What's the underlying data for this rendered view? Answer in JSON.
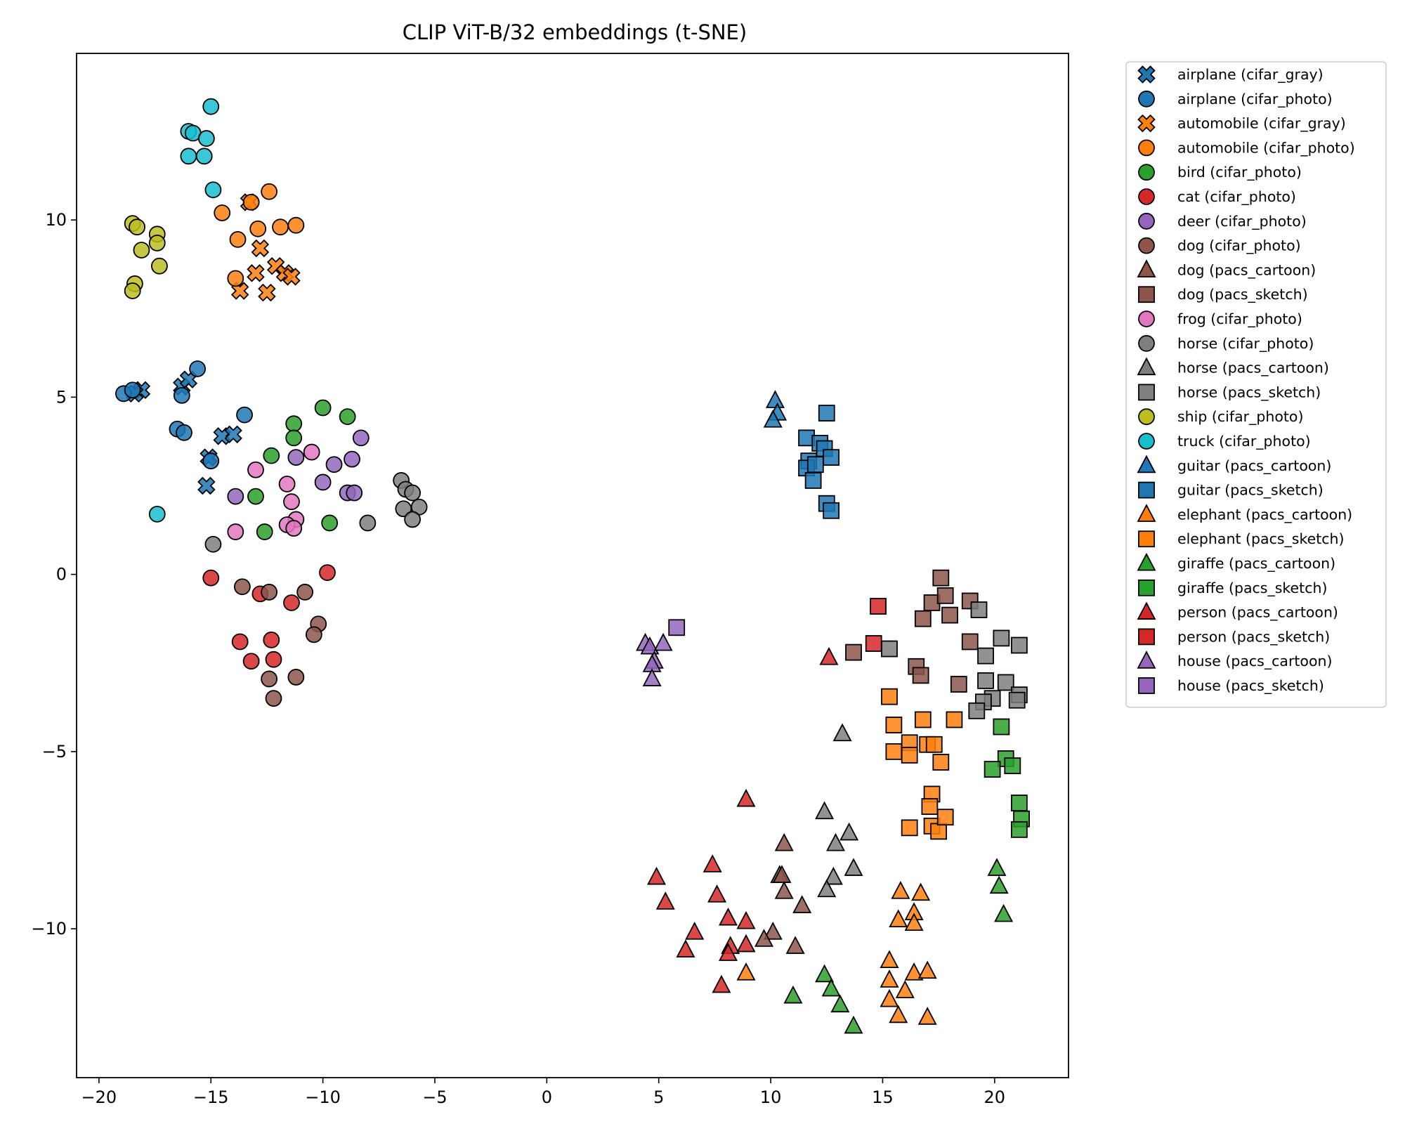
{
  "chart_data": {
    "type": "scatter",
    "title": "CLIP ViT-B/32 embeddings (t-SNE)",
    "xlabel": "",
    "ylabel": "",
    "xlim": [
      -21,
      23.3
    ],
    "ylim": [
      -14.2,
      14.7
    ],
    "xticks": [
      -20,
      -15,
      -10,
      -5,
      0,
      5,
      10,
      15,
      20
    ],
    "yticks": [
      -10,
      -5,
      0,
      5,
      10
    ],
    "grid": false,
    "legend_position": "outside-right",
    "series": [
      {
        "name": "airplane (cifar_gray)",
        "color": "#1f77b4",
        "marker": "x",
        "points": [
          [
            -18.1,
            5.2
          ],
          [
            -18.4,
            5.1
          ],
          [
            -16.3,
            5.3
          ],
          [
            -16.0,
            5.5
          ],
          [
            -14.5,
            3.9
          ],
          [
            -14.0,
            3.95
          ],
          [
            -15.1,
            3.3
          ],
          [
            -15.2,
            2.5
          ]
        ]
      },
      {
        "name": "airplane (cifar_photo)",
        "color": "#1f77b4",
        "marker": "o",
        "points": [
          [
            -18.9,
            5.1
          ],
          [
            -18.5,
            5.2
          ],
          [
            -15.6,
            5.8
          ],
          [
            -16.3,
            5.05
          ],
          [
            -16.5,
            4.1
          ],
          [
            -16.2,
            4.0
          ],
          [
            -13.5,
            4.5
          ],
          [
            -15.0,
            3.2
          ]
        ]
      },
      {
        "name": "automobile (cifar_gray)",
        "color": "#ff7f0e",
        "marker": "x",
        "points": [
          [
            -13.3,
            10.5
          ],
          [
            -12.8,
            9.2
          ],
          [
            -12.1,
            8.7
          ],
          [
            -11.7,
            8.5
          ],
          [
            -11.4,
            8.4
          ],
          [
            -13.0,
            8.5
          ],
          [
            -13.7,
            8.0
          ],
          [
            -12.5,
            7.95
          ]
        ]
      },
      {
        "name": "automobile (cifar_photo)",
        "color": "#ff7f0e",
        "marker": "o",
        "points": [
          [
            -13.2,
            10.5
          ],
          [
            -12.4,
            10.8
          ],
          [
            -14.5,
            10.2
          ],
          [
            -13.8,
            9.45
          ],
          [
            -12.9,
            9.75
          ],
          [
            -11.9,
            9.8
          ],
          [
            -11.2,
            9.85
          ],
          [
            -13.9,
            8.35
          ]
        ]
      },
      {
        "name": "bird (cifar_photo)",
        "color": "#2ca02c",
        "marker": "o",
        "points": [
          [
            -11.3,
            4.25
          ],
          [
            -11.3,
            3.85
          ],
          [
            -12.3,
            3.35
          ],
          [
            -10.0,
            4.7
          ],
          [
            -8.9,
            4.45
          ],
          [
            -13.0,
            2.2
          ],
          [
            -12.6,
            1.2
          ],
          [
            -9.7,
            1.45
          ]
        ]
      },
      {
        "name": "cat (cifar_photo)",
        "color": "#d62728",
        "marker": "o",
        "points": [
          [
            -15.0,
            -0.1
          ],
          [
            -9.8,
            0.05
          ],
          [
            -11.4,
            -0.8
          ],
          [
            -12.8,
            -0.55
          ],
          [
            -13.7,
            -1.9
          ],
          [
            -12.3,
            -1.85
          ],
          [
            -13.2,
            -2.45
          ],
          [
            -12.2,
            -2.4
          ]
        ]
      },
      {
        "name": "deer (cifar_photo)",
        "color": "#9467bd",
        "marker": "o",
        "points": [
          [
            -8.3,
            3.85
          ],
          [
            -9.5,
            3.1
          ],
          [
            -8.7,
            3.25
          ],
          [
            -11.2,
            3.3
          ],
          [
            -13.9,
            2.2
          ],
          [
            -10.0,
            2.6
          ],
          [
            -8.9,
            2.3
          ],
          [
            -8.6,
            2.3
          ]
        ]
      },
      {
        "name": "dog (cifar_photo)",
        "color": "#8c564b",
        "marker": "o",
        "points": [
          [
            -13.6,
            -0.35
          ],
          [
            -12.4,
            -0.5
          ],
          [
            -10.8,
            -0.5
          ],
          [
            -10.2,
            -1.4
          ],
          [
            -10.4,
            -1.7
          ],
          [
            -12.4,
            -2.95
          ],
          [
            -11.2,
            -2.9
          ],
          [
            -12.2,
            -3.5
          ]
        ]
      },
      {
        "name": "dog (pacs_cartoon)",
        "color": "#8c564b",
        "marker": "^",
        "points": [
          [
            10.6,
            -7.6
          ],
          [
            10.4,
            -8.5
          ],
          [
            10.5,
            -8.5
          ],
          [
            10.6,
            -8.95
          ],
          [
            11.4,
            -9.35
          ],
          [
            10.1,
            -10.1
          ],
          [
            11.1,
            -10.5
          ],
          [
            9.7,
            -10.3
          ]
        ]
      },
      {
        "name": "dog (pacs_sketch)",
        "color": "#8c564b",
        "marker": "s",
        "points": [
          [
            17.6,
            -0.1
          ],
          [
            17.2,
            -0.8
          ],
          [
            17.8,
            -0.6
          ],
          [
            18.9,
            -0.75
          ],
          [
            16.8,
            -1.25
          ],
          [
            18.0,
            -1.15
          ],
          [
            18.9,
            -1.9
          ],
          [
            13.7,
            -2.2
          ],
          [
            16.5,
            -2.6
          ],
          [
            16.7,
            -2.85
          ],
          [
            18.4,
            -3.1
          ]
        ]
      },
      {
        "name": "frog (cifar_photo)",
        "color": "#e377c2",
        "marker": "o",
        "points": [
          [
            -10.5,
            3.45
          ],
          [
            -13.0,
            2.95
          ],
          [
            -11.6,
            2.55
          ],
          [
            -11.4,
            2.05
          ],
          [
            -11.2,
            1.55
          ],
          [
            -11.6,
            1.4
          ],
          [
            -11.3,
            1.3
          ],
          [
            -13.9,
            1.2
          ]
        ]
      },
      {
        "name": "horse (cifar_photo)",
        "color": "#7f7f7f",
        "marker": "o",
        "points": [
          [
            -6.5,
            2.65
          ],
          [
            -6.3,
            2.4
          ],
          [
            -6.0,
            2.3
          ],
          [
            -5.7,
            1.9
          ],
          [
            -6.4,
            1.85
          ],
          [
            -6.0,
            1.55
          ],
          [
            -8.0,
            1.45
          ],
          [
            -14.9,
            0.85
          ]
        ]
      },
      {
        "name": "horse (pacs_cartoon)",
        "color": "#7f7f7f",
        "marker": "^",
        "points": [
          [
            13.2,
            -4.5
          ],
          [
            12.4,
            -6.7
          ],
          [
            13.5,
            -7.3
          ],
          [
            12.9,
            -7.6
          ],
          [
            13.7,
            -8.3
          ],
          [
            12.8,
            -8.55
          ],
          [
            12.5,
            -8.9
          ]
        ]
      },
      {
        "name": "horse (pacs_sketch)",
        "color": "#7f7f7f",
        "marker": "s",
        "points": [
          [
            19.3,
            -1.0
          ],
          [
            20.3,
            -1.8
          ],
          [
            21.1,
            -2.0
          ],
          [
            15.3,
            -2.1
          ],
          [
            19.6,
            -2.3
          ],
          [
            19.6,
            -3.0
          ],
          [
            20.5,
            -3.05
          ],
          [
            21.1,
            -3.4
          ],
          [
            19.9,
            -3.5
          ],
          [
            19.5,
            -3.6
          ],
          [
            21.0,
            -3.55
          ],
          [
            19.2,
            -3.85
          ]
        ]
      },
      {
        "name": "ship (cifar_photo)",
        "color": "#bcbd22",
        "marker": "o",
        "points": [
          [
            -18.5,
            9.9
          ],
          [
            -18.3,
            9.8
          ],
          [
            -17.4,
            9.6
          ],
          [
            -17.4,
            9.35
          ],
          [
            -18.1,
            9.15
          ],
          [
            -17.3,
            8.7
          ],
          [
            -18.4,
            8.2
          ],
          [
            -18.5,
            8.0
          ]
        ]
      },
      {
        "name": "truck (cifar_photo)",
        "color": "#17becf",
        "marker": "o",
        "points": [
          [
            -15.0,
            13.2
          ],
          [
            -16.0,
            12.5
          ],
          [
            -15.8,
            12.45
          ],
          [
            -15.2,
            12.3
          ],
          [
            -16.0,
            11.8
          ],
          [
            -15.3,
            11.8
          ],
          [
            -14.9,
            10.85
          ],
          [
            -17.4,
            1.7
          ]
        ]
      },
      {
        "name": "guitar (pacs_cartoon)",
        "color": "#1f77b4",
        "marker": "^",
        "points": [
          [
            10.2,
            4.9
          ],
          [
            10.3,
            4.55
          ],
          [
            10.1,
            4.35
          ]
        ]
      },
      {
        "name": "guitar (pacs_sketch)",
        "color": "#1f77b4",
        "marker": "s",
        "points": [
          [
            12.5,
            4.55
          ],
          [
            11.6,
            3.85
          ],
          [
            12.2,
            3.7
          ],
          [
            12.4,
            3.55
          ],
          [
            11.7,
            3.2
          ],
          [
            12.7,
            3.3
          ],
          [
            11.6,
            3.0
          ],
          [
            12.0,
            3.1
          ],
          [
            11.9,
            2.65
          ],
          [
            12.5,
            2.0
          ],
          [
            12.7,
            1.8
          ]
        ]
      },
      {
        "name": "elephant (pacs_cartoon)",
        "color": "#ff7f0e",
        "marker": "^",
        "points": [
          [
            15.8,
            -8.95
          ],
          [
            16.7,
            -9.0
          ],
          [
            16.4,
            -9.55
          ],
          [
            15.7,
            -9.75
          ],
          [
            16.4,
            -9.85
          ],
          [
            15.3,
            -10.9
          ],
          [
            8.9,
            -11.25
          ],
          [
            16.4,
            -11.25
          ],
          [
            17.0,
            -11.2
          ],
          [
            15.3,
            -11.45
          ],
          [
            16.0,
            -11.75
          ],
          [
            15.3,
            -12.0
          ],
          [
            15.7,
            -12.45
          ],
          [
            17.0,
            -12.5
          ]
        ]
      },
      {
        "name": "elephant (pacs_sketch)",
        "color": "#ff7f0e",
        "marker": "s",
        "points": [
          [
            15.3,
            -3.45
          ],
          [
            15.5,
            -4.25
          ],
          [
            16.8,
            -4.1
          ],
          [
            18.2,
            -4.1
          ],
          [
            16.2,
            -4.75
          ],
          [
            17.0,
            -4.8
          ],
          [
            17.3,
            -4.8
          ],
          [
            15.5,
            -5.0
          ],
          [
            16.2,
            -5.1
          ],
          [
            17.6,
            -5.3
          ],
          [
            17.2,
            -6.2
          ],
          [
            17.1,
            -6.55
          ],
          [
            16.2,
            -7.15
          ],
          [
            17.2,
            -7.1
          ],
          [
            17.5,
            -7.25
          ],
          [
            17.8,
            -6.85
          ]
        ]
      },
      {
        "name": "giraffe (pacs_cartoon)",
        "color": "#2ca02c",
        "marker": "^",
        "points": [
          [
            20.1,
            -8.3
          ],
          [
            20.2,
            -8.8
          ],
          [
            20.4,
            -9.6
          ],
          [
            12.4,
            -11.3
          ],
          [
            12.7,
            -11.7
          ],
          [
            11.0,
            -11.9
          ],
          [
            13.1,
            -12.15
          ],
          [
            13.7,
            -12.75
          ]
        ]
      },
      {
        "name": "giraffe (pacs_sketch)",
        "color": "#2ca02c",
        "marker": "s",
        "points": [
          [
            20.3,
            -4.3
          ],
          [
            20.5,
            -5.2
          ],
          [
            20.8,
            -5.4
          ],
          [
            19.9,
            -5.5
          ],
          [
            21.1,
            -6.45
          ],
          [
            21.2,
            -6.9
          ],
          [
            21.1,
            -7.2
          ]
        ]
      },
      {
        "name": "person (pacs_cartoon)",
        "color": "#d62728",
        "marker": "^",
        "points": [
          [
            12.6,
            -2.35
          ],
          [
            8.9,
            -6.35
          ],
          [
            7.4,
            -8.2
          ],
          [
            4.9,
            -8.55
          ],
          [
            5.3,
            -9.25
          ],
          [
            7.6,
            -9.05
          ],
          [
            8.1,
            -9.7
          ],
          [
            8.9,
            -9.8
          ],
          [
            6.6,
            -10.1
          ],
          [
            6.2,
            -10.6
          ],
          [
            8.2,
            -10.5
          ],
          [
            8.1,
            -10.7
          ],
          [
            8.9,
            -10.45
          ],
          [
            7.8,
            -11.6
          ]
        ]
      },
      {
        "name": "person (pacs_sketch)",
        "color": "#d62728",
        "marker": "s",
        "points": [
          [
            14.8,
            -0.9
          ],
          [
            14.6,
            -1.95
          ]
        ]
      },
      {
        "name": "house (pacs_cartoon)",
        "color": "#9467bd",
        "marker": "^",
        "points": [
          [
            4.4,
            -1.95
          ],
          [
            4.6,
            -2.05
          ],
          [
            5.2,
            -1.95
          ],
          [
            4.8,
            -2.45
          ],
          [
            4.7,
            -2.55
          ],
          [
            4.7,
            -2.95
          ]
        ]
      },
      {
        "name": "house (pacs_sketch)",
        "color": "#9467bd",
        "marker": "s",
        "points": [
          [
            5.8,
            -1.5
          ]
        ]
      }
    ]
  }
}
